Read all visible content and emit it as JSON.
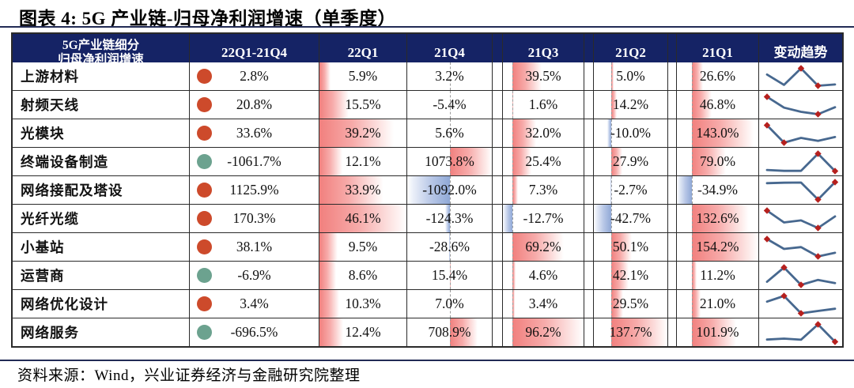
{
  "title": "图表 4:  5G 产业链-归母净利润增速（单季度）",
  "source": "资料来源：Wind，兴业证券经济与金融研究院整理",
  "header": {
    "label_line1": "5G产业链细分",
    "label_line2": "归母净利润增速",
    "overview": "22Q1-21Q4",
    "quarters": [
      "22Q1",
      "21Q4",
      "21Q3",
      "21Q2",
      "21Q1"
    ],
    "trend": "变动趋势"
  },
  "colors": {
    "header_bg": "#152365",
    "accent_rule": "#222b55",
    "positive_dot": "#cd4a2b",
    "negative_dot": "#6ca28f",
    "bar_positive": "#f1807e",
    "bar_negative": "#8fa8d6",
    "sparkline_line": "#47688f",
    "sparkline_marker": "#b6201e"
  },
  "chart_data": {
    "type": "table",
    "title": "5G 产业链-归母净利润增速（单季度）",
    "unit": "%",
    "columns": [
      "5G产业链细分归母净利润增速",
      "22Q1-21Q4",
      "22Q1",
      "21Q4",
      "21Q3",
      "21Q2",
      "21Q1",
      "变动趋势"
    ],
    "sparkline_chronological_order": [
      "21Q1",
      "21Q2",
      "21Q3",
      "21Q4",
      "22Q1"
    ],
    "sparkline_markers": "max_and_min",
    "rows": [
      {
        "label": "上游材料",
        "overview": 2.8,
        "values": {
          "22Q1": 5.9,
          "21Q4": 3.2,
          "21Q3": 39.5,
          "21Q2": 5.0,
          "21Q1": 26.6
        }
      },
      {
        "label": "射频天线",
        "overview": 20.8,
        "values": {
          "22Q1": 15.5,
          "21Q4": -5.4,
          "21Q3": 1.6,
          "21Q2": 14.2,
          "21Q1": 46.8
        }
      },
      {
        "label": "光模块",
        "overview": 33.6,
        "values": {
          "22Q1": 39.2,
          "21Q4": 5.6,
          "21Q3": 32.0,
          "21Q2": -10.0,
          "21Q1": 143.0
        }
      },
      {
        "label": "终端设备制造",
        "overview": -1061.7,
        "values": {
          "22Q1": 12.1,
          "21Q4": 1073.8,
          "21Q3": 25.4,
          "21Q2": 27.9,
          "21Q1": 79.0
        }
      },
      {
        "label": "网络接配及塔设",
        "overview": 1125.9,
        "values": {
          "22Q1": 33.9,
          "21Q4": -1092.0,
          "21Q3": 7.3,
          "21Q2": -2.7,
          "21Q1": -34.9
        }
      },
      {
        "label": "光纤光缆",
        "overview": 170.3,
        "values": {
          "22Q1": 46.1,
          "21Q4": -124.3,
          "21Q3": -12.7,
          "21Q2": -42.7,
          "21Q1": 132.6
        }
      },
      {
        "label": "小基站",
        "overview": 38.1,
        "values": {
          "22Q1": 9.5,
          "21Q4": -28.6,
          "21Q3": 69.2,
          "21Q2": 50.1,
          "21Q1": 154.2
        }
      },
      {
        "label": "运营商",
        "overview": -6.9,
        "values": {
          "22Q1": 8.6,
          "21Q4": 15.4,
          "21Q3": 4.6,
          "21Q2": 42.1,
          "21Q1": 11.2
        }
      },
      {
        "label": "网络优化设计",
        "overview": 3.4,
        "values": {
          "22Q1": 10.3,
          "21Q4": 7.0,
          "21Q3": 3.4,
          "21Q2": 29.5,
          "21Q1": 21.0
        }
      },
      {
        "label": "网络服务",
        "overview": -696.5,
        "values": {
          "22Q1": 12.4,
          "21Q4": 708.9,
          "21Q3": 96.2,
          "21Q2": 137.7,
          "21Q1": 101.9
        }
      }
    ]
  }
}
